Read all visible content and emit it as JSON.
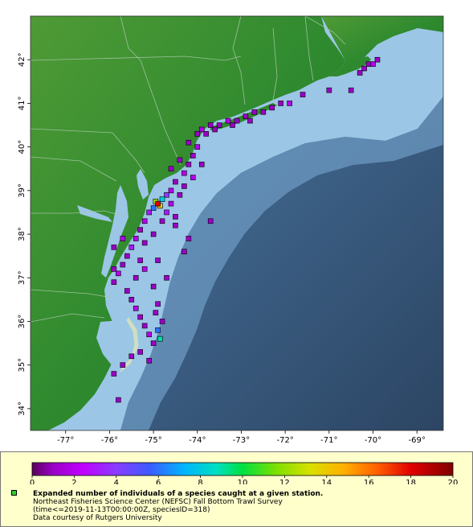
{
  "map": {
    "lon_labels": [
      "-77°",
      "-76°",
      "-75°",
      "-74°",
      "-73°",
      "-72°",
      "-71°",
      "-70°",
      "-69°"
    ],
    "lat_labels": [
      "34°",
      "35°",
      "36°",
      "37°",
      "38°",
      "39°",
      "40°",
      "41°",
      "42°"
    ],
    "lon_range": [
      -77.8,
      -68.4
    ],
    "lat_range": [
      33.5,
      43.0
    ],
    "colors": {
      "land": "#2f8a2f",
      "highland": "#5aa33a",
      "shallow_water": "#9cc6e6",
      "deep_water": "#34506e",
      "border_lines": "#a8c8a8"
    }
  },
  "colorbar": {
    "ticks": [
      "0",
      "2",
      "4",
      "6",
      "8",
      "10",
      "12",
      "14",
      "16",
      "18",
      "20"
    ],
    "min": 0,
    "max": 20
  },
  "legend": {
    "title": "Expanded number of individuals of a species caught at a given station.",
    "line1": "Northeast Fisheries Science Center (NEFSC) Fall Bottom Trawl Survey",
    "line2": "(time<=2019-11-13T00:00:00Z, speciesID=318)",
    "line3": "Data courtesy of Rutgers University"
  },
  "stations": [
    [
      -69.9,
      42.0,
      1
    ],
    [
      -70.0,
      41.9,
      2
    ],
    [
      -70.1,
      41.9,
      1
    ],
    [
      -70.2,
      41.8,
      1
    ],
    [
      -70.3,
      41.7,
      1
    ],
    [
      -70.5,
      41.3,
      1
    ],
    [
      -71.0,
      41.3,
      1
    ],
    [
      -71.6,
      41.2,
      1
    ],
    [
      -71.9,
      41.0,
      2
    ],
    [
      -72.1,
      41.0,
      1
    ],
    [
      -72.3,
      40.9,
      1
    ],
    [
      -72.5,
      40.8,
      1
    ],
    [
      -72.7,
      40.8,
      1
    ],
    [
      -72.9,
      40.7,
      1
    ],
    [
      -73.1,
      40.6,
      1
    ],
    [
      -73.3,
      40.6,
      2
    ],
    [
      -73.5,
      40.5,
      1
    ],
    [
      -73.7,
      40.5,
      1
    ],
    [
      -73.9,
      40.4,
      2
    ],
    [
      -74.0,
      40.3,
      1
    ],
    [
      -73.6,
      40.4,
      1
    ],
    [
      -73.2,
      40.5,
      1
    ],
    [
      -72.8,
      40.6,
      1
    ],
    [
      -74.0,
      40.0,
      2
    ],
    [
      -74.1,
      39.8,
      1
    ],
    [
      -74.2,
      39.6,
      1
    ],
    [
      -74.3,
      39.4,
      2
    ],
    [
      -74.5,
      39.2,
      1
    ],
    [
      -74.6,
      39.0,
      2
    ],
    [
      -74.7,
      38.9,
      4
    ],
    [
      -74.8,
      38.8,
      8
    ],
    [
      -74.9,
      38.7,
      18
    ],
    [
      -74.85,
      38.65,
      14
    ],
    [
      -74.95,
      38.75,
      12
    ],
    [
      -75.0,
      38.6,
      6
    ],
    [
      -74.7,
      38.5,
      3
    ],
    [
      -74.6,
      38.7,
      2
    ],
    [
      -74.4,
      38.9,
      1
    ],
    [
      -74.3,
      39.1,
      1
    ],
    [
      -74.1,
      39.3,
      2
    ],
    [
      -73.9,
      39.6,
      1
    ],
    [
      -75.1,
      38.5,
      3
    ],
    [
      -75.2,
      38.3,
      2
    ],
    [
      -75.3,
      38.1,
      1
    ],
    [
      -75.4,
      37.9,
      2
    ],
    [
      -75.5,
      37.7,
      3
    ],
    [
      -75.6,
      37.5,
      1
    ],
    [
      -75.7,
      37.3,
      1
    ],
    [
      -75.8,
      37.1,
      2
    ],
    [
      -75.9,
      36.9,
      1
    ],
    [
      -75.6,
      36.7,
      1
    ],
    [
      -75.5,
      36.5,
      1
    ],
    [
      -75.4,
      36.3,
      2
    ],
    [
      -75.3,
      36.1,
      1
    ],
    [
      -75.2,
      35.9,
      1
    ],
    [
      -75.1,
      35.7,
      2
    ],
    [
      -75.0,
      35.5,
      1
    ],
    [
      -74.9,
      35.8,
      6
    ],
    [
      -74.85,
      35.6,
      9
    ],
    [
      -75.3,
      35.3,
      1
    ],
    [
      -75.5,
      35.2,
      1
    ],
    [
      -75.7,
      35.0,
      1
    ],
    [
      -75.9,
      34.8,
      1
    ],
    [
      -75.8,
      34.2,
      1
    ],
    [
      -74.9,
      36.4,
      1
    ],
    [
      -74.8,
      36.0,
      1
    ],
    [
      -74.7,
      37.0,
      1
    ],
    [
      -74.2,
      37.9,
      1
    ],
    [
      -74.3,
      37.6,
      1
    ],
    [
      -73.7,
      38.3,
      1
    ],
    [
      -74.5,
      38.2,
      1
    ],
    [
      -74.9,
      37.4,
      1
    ],
    [
      -75.2,
      37.2,
      2
    ],
    [
      -75.4,
      37.0,
      1
    ],
    [
      -75.9,
      37.7,
      1
    ],
    [
      -75.7,
      37.9,
      2
    ],
    [
      -75.9,
      37.2,
      1
    ],
    [
      -74.6,
      39.5,
      1
    ],
    [
      -74.4,
      39.7,
      1
    ],
    [
      -74.2,
      40.1,
      1
    ],
    [
      -73.8,
      40.3,
      1
    ],
    [
      -74.5,
      38.4,
      1
    ],
    [
      -74.8,
      38.3,
      1
    ],
    [
      -75.0,
      38.0,
      1
    ],
    [
      -75.2,
      37.8,
      1
    ],
    [
      -75.3,
      37.4,
      1
    ],
    [
      -75.0,
      36.8,
      1
    ],
    [
      -74.95,
      36.2,
      1
    ],
    [
      -75.1,
      35.1,
      1
    ]
  ]
}
